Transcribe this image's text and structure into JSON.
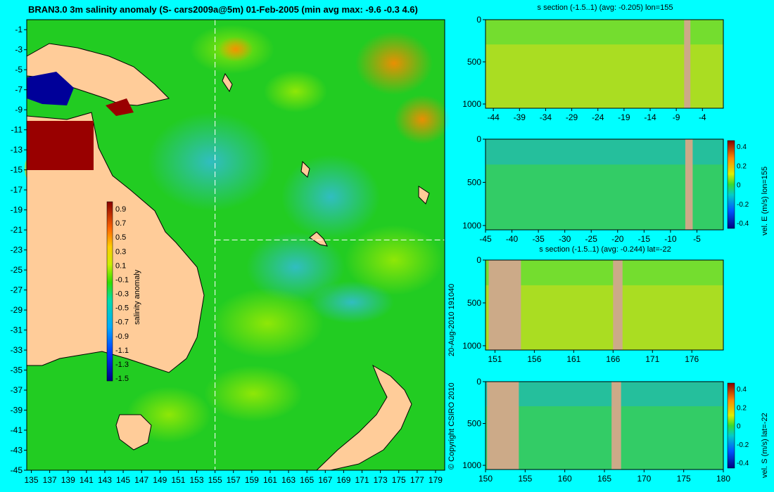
{
  "main_map": {
    "title": "BRAN3.0 3m salinity anomaly (S- cars2009a@5m) 01-Feb-2005 (min avg max: -9.6 -0.3 4.6)",
    "lon_ticks": [
      135,
      137,
      139,
      141,
      143,
      145,
      147,
      149,
      151,
      153,
      155,
      157,
      159,
      161,
      163,
      165,
      167,
      169,
      171,
      173,
      175,
      177,
      179
    ],
    "lat_ticks": [
      -1,
      -3,
      -5,
      -7,
      -9,
      -11,
      -13,
      -15,
      -17,
      -19,
      -21,
      -23,
      -25,
      -27,
      -29,
      -31,
      -33,
      -35,
      -37,
      -39,
      -41,
      -43,
      -45
    ],
    "xlim": [
      134.5,
      180
    ],
    "ylim": [
      -45,
      0
    ],
    "crosshair": {
      "lon": 155,
      "lat": -22
    },
    "colorbar": {
      "label": "salinity anomaly",
      "ticks": [
        "0.9",
        "0.7",
        "0.5",
        "0.3",
        "0.1",
        "-0.1",
        "-0.3",
        "-0.5",
        "-0.7",
        "-0.9",
        "-1.1",
        "-1.3",
        "-1.5"
      ]
    },
    "colors": {
      "land": "#FFCC99",
      "ocean": "#22CC22",
      "high": "#990000",
      "low": "#000099"
    }
  },
  "side_text": {
    "date": "20-Aug-2010 191040",
    "copyright": "© Copyright CSIRO 2010"
  },
  "sections": [
    {
      "id": "salinity-lon",
      "title": "s section (-1.5..1) (avg: -0.205) lon=155",
      "x_ticks": [
        "-44",
        "-39",
        "-34",
        "-29",
        "-24",
        "-19",
        "-14",
        "-9",
        "-4"
      ],
      "x_values": [
        -44,
        -39,
        -34,
        -29,
        -24,
        -19,
        -14,
        -9,
        -4
      ],
      "xlim": [
        -45.5,
        0
      ],
      "y_ticks": [
        "0",
        "500",
        "1000"
      ],
      "ylim": [
        0,
        1050
      ],
      "colorbar": null,
      "land_bands": [
        [
          -7.5,
          -6.3
        ]
      ]
    },
    {
      "id": "velocity-east-lon",
      "title": "",
      "x_ticks": [
        "-45",
        "-40",
        "-35",
        "-30",
        "-25",
        "-20",
        "-15",
        "-10",
        "-5"
      ],
      "x_values": [
        -45,
        -40,
        -35,
        -30,
        -25,
        -20,
        -15,
        -10,
        -5
      ],
      "xlim": [
        -45,
        0
      ],
      "y_ticks": [
        "0",
        "500",
        "1000"
      ],
      "ylim": [
        0,
        1050
      ],
      "colorbar": {
        "label": "vel. E (m/s) lon=155",
        "ticks": [
          "0.4",
          "0.2",
          "0",
          "-0.2",
          "-0.4"
        ]
      },
      "land_bands": [
        [
          -7.2,
          -5.8
        ]
      ]
    },
    {
      "id": "salinity-lat",
      "title": "s section (-1.5..1) (avg: -0.244) lat=-22",
      "x_ticks": [
        "151",
        "156",
        "161",
        "166",
        "171",
        "176"
      ],
      "x_values": [
        151,
        156,
        161,
        166,
        171,
        176
      ],
      "xlim": [
        149.8,
        180
      ],
      "y_ticks": [
        "0",
        "500",
        "1000"
      ],
      "ylim": [
        0,
        1050
      ],
      "colorbar": null,
      "land_bands": [
        [
          150.2,
          154.3
        ],
        [
          166.0,
          167.2
        ]
      ]
    },
    {
      "id": "velocity-south-lat",
      "title": "",
      "x_ticks": [
        "150",
        "155",
        "160",
        "165",
        "170",
        "175",
        "180"
      ],
      "x_values": [
        150,
        155,
        160,
        165,
        170,
        175,
        180
      ],
      "xlim": [
        150,
        180
      ],
      "y_ticks": [
        "0",
        "500",
        "1000"
      ],
      "ylim": [
        0,
        1050
      ],
      "colorbar": {
        "label": "vel. S (m/s) lat=-22",
        "ticks": [
          "0.4",
          "0.2",
          "0",
          "-0.2",
          "-0.4"
        ]
      },
      "land_bands": [
        [
          150.2,
          154.2
        ],
        [
          165.9,
          167.1
        ]
      ]
    }
  ]
}
